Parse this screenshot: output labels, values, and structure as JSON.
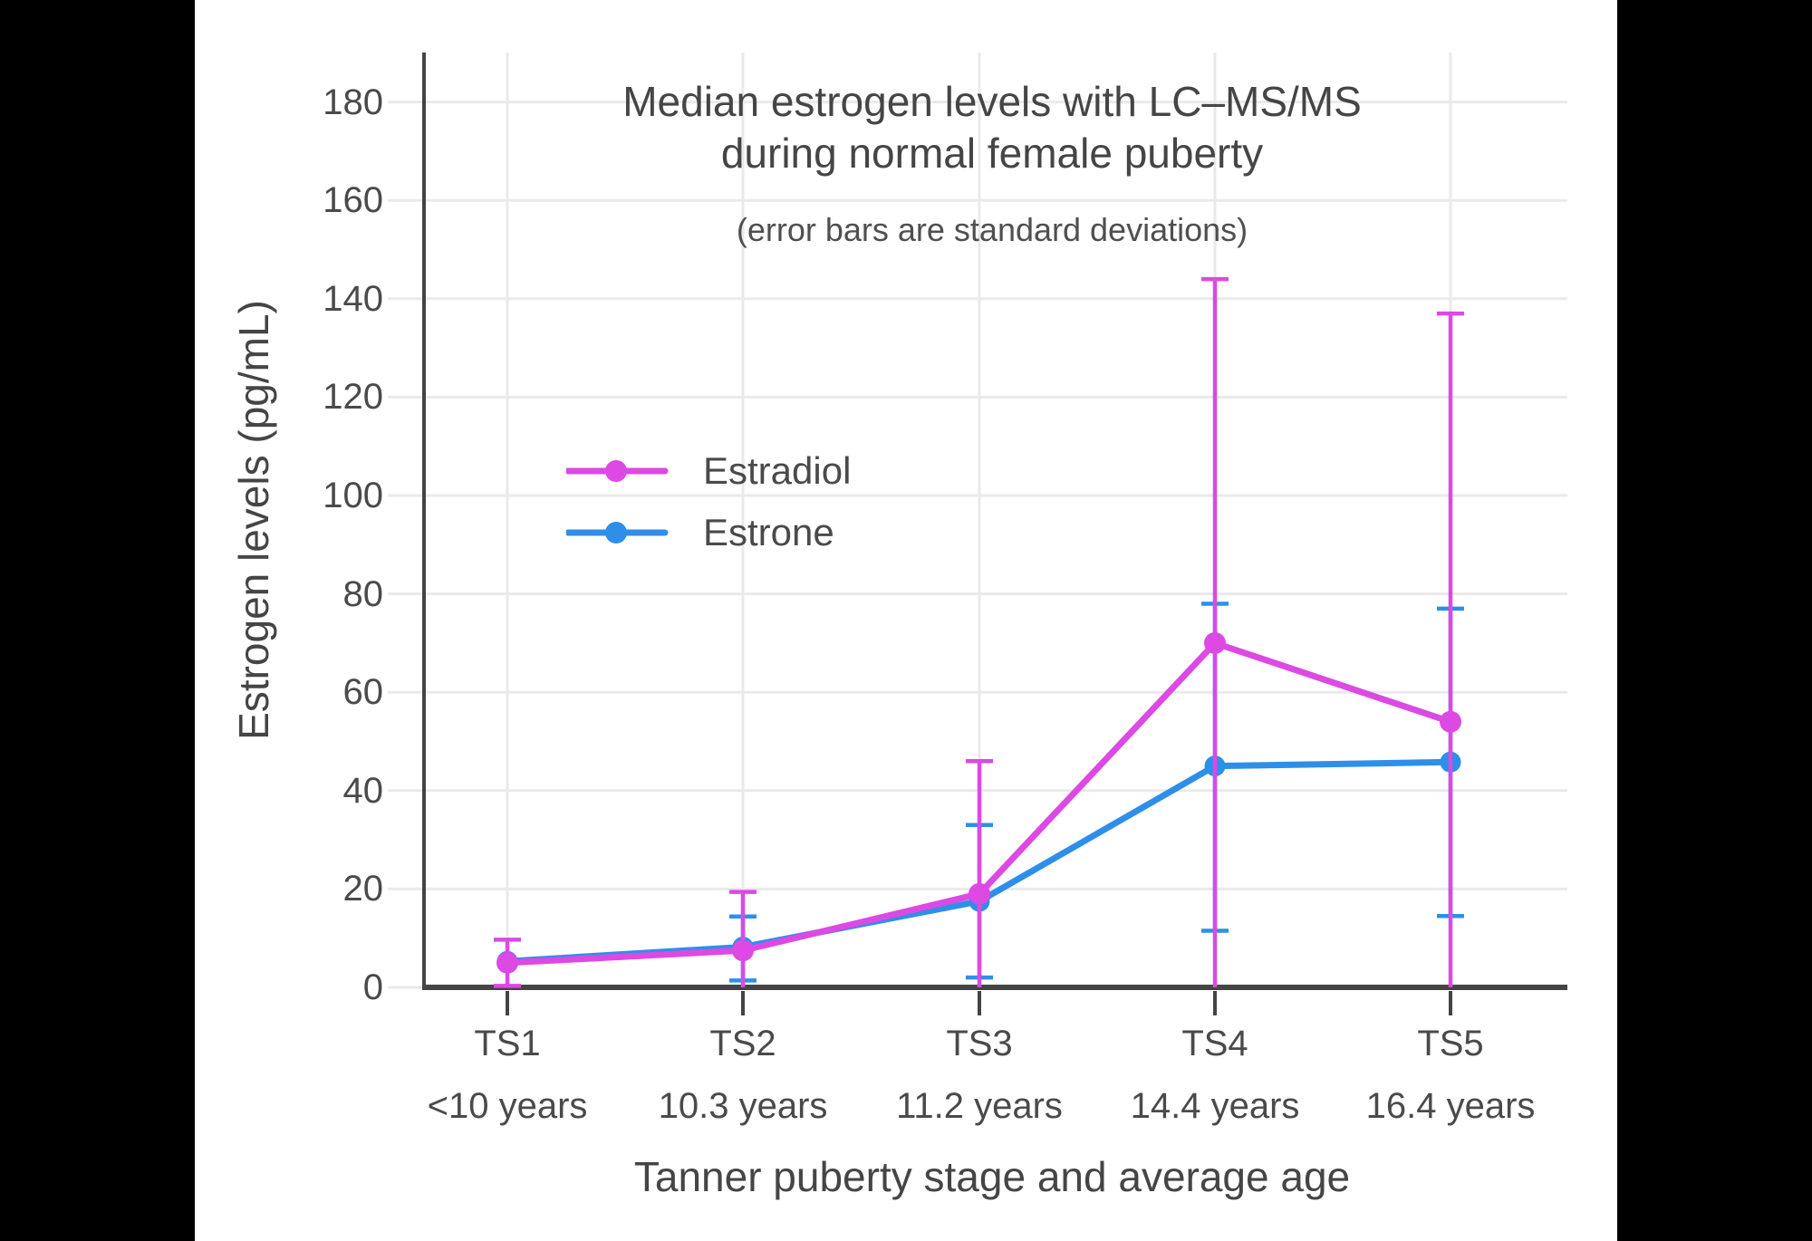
{
  "title": {
    "line1": "Median estrogen levels with LC–MS/MS",
    "line2": "during normal female puberty"
  },
  "subtitle": "(error bars are standard deviations)",
  "y_axis": {
    "title": "Estrogen levels (pg/mL)",
    "ticks": [
      0,
      20,
      40,
      60,
      80,
      100,
      120,
      140,
      160,
      180
    ]
  },
  "x_axis": {
    "title": "Tanner puberty stage and average age"
  },
  "legend": [
    {
      "label": "Estradiol",
      "color": "#DC49E3"
    },
    {
      "label": "Estrone",
      "color": "#2E8FE8"
    }
  ],
  "colors": {
    "estradiol": "#DC49E3",
    "estrone": "#2E8FE8",
    "grid": "#EAEAEA",
    "axis": "#444444",
    "text": "#4A4A4A",
    "background": "#FFFFFF",
    "letterbox": "#000000"
  },
  "chart_data": {
    "type": "line",
    "title": "Median estrogen levels with LC–MS/MS during normal female puberty",
    "subtitle": "(error bars are standard deviations)",
    "xlabel": "Tanner puberty stage and average age",
    "ylabel": "Estrogen levels (pg/mL)",
    "categories": [
      "TS1",
      "TS2",
      "TS3",
      "TS4",
      "TS5"
    ],
    "category_ages": [
      "<10 years",
      "10.3 years",
      "11.2 years",
      "14.4 years",
      "16.4 years"
    ],
    "ylim": [
      0,
      190
    ],
    "grid": true,
    "legend_position": "inside-left",
    "error_bar_meaning": "standard deviation",
    "series": [
      {
        "name": "Estradiol",
        "color": "#DC49E3",
        "values": [
          5,
          7.5,
          19,
          70,
          54
        ],
        "error_upper": [
          9.7,
          19.4,
          46,
          144,
          137
        ],
        "error_lower": [
          0.3,
          null,
          null,
          null,
          null
        ]
      },
      {
        "name": "Estrone",
        "color": "#2E8FE8",
        "values": [
          5.3,
          8.2,
          17.5,
          45,
          45.8
        ],
        "error_upper": [
          null,
          14.4,
          33,
          78,
          77
        ],
        "error_lower": [
          null,
          1.4,
          2,
          11.5,
          14.5
        ]
      }
    ]
  }
}
